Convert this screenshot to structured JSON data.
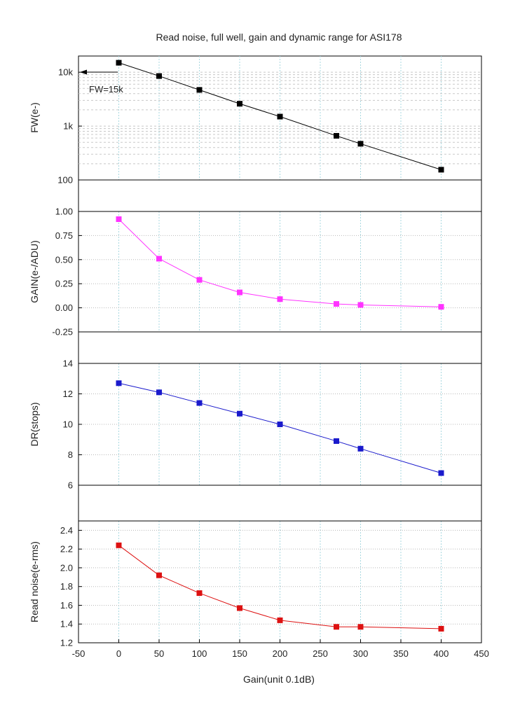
{
  "chart_data": {
    "type": "line",
    "title": "Read noise, full well, gain and dynamic range for ASI178",
    "xlabel": "Gain(unit 0.1dB)",
    "xlim": [
      -50,
      450
    ],
    "x_ticks": [
      -50,
      0,
      50,
      100,
      150,
      200,
      250,
      300,
      350,
      400,
      450
    ],
    "x_tick_labels": [
      "-50",
      "0",
      "50",
      "100",
      "150",
      "200",
      "250",
      "300",
      "350",
      "400",
      "450"
    ],
    "x": [
      0,
      50,
      100,
      150,
      200,
      270,
      300,
      400
    ],
    "panels": [
      {
        "name": "full-well",
        "ylabel": "FW(e-)",
        "scale": "log",
        "ylim": [
          100,
          20000
        ],
        "y_ticks": [
          100,
          1000,
          10000
        ],
        "y_tick_labels": [
          "100",
          "1k",
          "10k"
        ],
        "color": "#000000",
        "values": [
          15000,
          8500,
          4700,
          2600,
          1500,
          660,
          470,
          155
        ],
        "annotation": "FW=15k"
      },
      {
        "name": "gain",
        "ylabel": "GAIN(e-/ADU)",
        "scale": "linear",
        "ylim": [
          -0.25,
          1.0
        ],
        "y_ticks": [
          -0.25,
          0.0,
          0.25,
          0.5,
          0.75,
          1.0
        ],
        "y_tick_labels": [
          "-0.25",
          "0.00",
          "0.25",
          "0.50",
          "0.75",
          "1.00"
        ],
        "color": "#ff33ff",
        "values": [
          0.92,
          0.51,
          0.29,
          0.16,
          0.09,
          0.04,
          0.03,
          0.01
        ]
      },
      {
        "name": "dynamic-range",
        "ylabel": "DR(stops)",
        "scale": "linear",
        "ylim": [
          6,
          14
        ],
        "y_ticks": [
          6,
          8,
          10,
          12,
          14
        ],
        "y_tick_labels": [
          "6",
          "8",
          "10",
          "12",
          "14"
        ],
        "color": "#1a1acc",
        "values": [
          12.7,
          12.1,
          11.4,
          10.7,
          10.0,
          8.9,
          8.4,
          6.8
        ]
      },
      {
        "name": "read-noise",
        "ylabel": "Read noise(e-rms)",
        "scale": "linear",
        "ylim": [
          1.2,
          2.5
        ],
        "y_ticks": [
          1.2,
          1.4,
          1.6,
          1.8,
          2.0,
          2.2,
          2.4
        ],
        "y_tick_labels": [
          "1.2",
          "1.4",
          "1.6",
          "1.8",
          "2.0",
          "2.2",
          "2.4"
        ],
        "color": "#dd1111",
        "values": [
          2.24,
          1.92,
          1.73,
          1.57,
          1.44,
          1.37,
          1.37,
          1.35
        ]
      }
    ]
  }
}
